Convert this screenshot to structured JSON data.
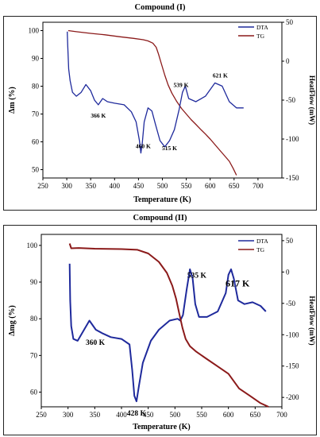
{
  "chart_data": [
    {
      "type": "line",
      "title": "Compound (I)",
      "xlabel": "Temperature (K)",
      "ylabel": "Δm (%)",
      "y2label": "HeatFlow (mW)",
      "xlim": [
        250,
        750
      ],
      "ylim": [
        47,
        103
      ],
      "y2lim": [
        -150,
        50
      ],
      "xticks": [
        250,
        300,
        350,
        400,
        450,
        500,
        550,
        600,
        650,
        700
      ],
      "yticks": [
        50,
        60,
        70,
        80,
        90,
        100
      ],
      "y2ticks": [
        -150,
        -100,
        -50,
        0,
        50
      ],
      "legend": [
        "DTA",
        "TG"
      ],
      "legend_position": "top-right",
      "series": [
        {
          "name": "TG",
          "axis": "left",
          "color": "#8b1a1a",
          "x": [
            303,
            320,
            350,
            380,
            410,
            440,
            460,
            470,
            480,
            487,
            492,
            498,
            505,
            512,
            520,
            530,
            540,
            550,
            560,
            570,
            580,
            590,
            600,
            610,
            620,
            630,
            640,
            648,
            655
          ],
          "y": [
            100,
            99.6,
            99,
            98.5,
            97.8,
            97.2,
            96.7,
            96.3,
            95.5,
            94,
            91.5,
            88,
            84,
            80.5,
            77.5,
            74.5,
            72,
            70,
            68,
            66.3,
            64.5,
            62.8,
            61,
            59,
            57,
            55,
            53,
            50.5,
            48
          ]
        },
        {
          "name": "DTA",
          "axis": "right",
          "color": "#1f2a9c",
          "x": [
            301,
            302,
            304,
            307,
            312,
            320,
            330,
            340,
            350,
            358,
            366,
            375,
            385,
            400,
            420,
            435,
            445,
            452,
            455,
            458,
            462,
            470,
            478,
            485,
            495,
            505,
            515,
            525,
            535,
            542,
            548,
            555,
            570,
            590,
            610,
            625,
            640,
            655,
            670
          ],
          "y": [
            38,
            20,
            -10,
            -25,
            -40,
            -45,
            -40,
            -30,
            -38,
            -50,
            -56,
            -48,
            -52,
            -54,
            -56,
            -65,
            -78,
            -102,
            -118,
            -105,
            -78,
            -60,
            -64,
            -80,
            -102,
            -110,
            -102,
            -88,
            -62,
            -40,
            -32,
            -48,
            -52,
            -45,
            -28,
            -32,
            -52,
            -60,
            -60
          ]
        }
      ],
      "annotations": [
        "366 K",
        "460 K",
        "515 K",
        "539 K",
        "621 K"
      ]
    },
    {
      "type": "line",
      "title": "Compound (II)",
      "xlabel": "Temperature (K)",
      "ylabel": "Δmg (%)",
      "y2label": "HeatFlow (mW)",
      "xlim": [
        250,
        700
      ],
      "ylim": [
        56,
        103
      ],
      "y2lim": [
        -215,
        60
      ],
      "xticks": [
        250,
        300,
        350,
        400,
        450,
        500,
        550,
        600,
        650,
        700
      ],
      "yticks": [
        60,
        70,
        80,
        90,
        100
      ],
      "y2ticks": [
        -200,
        -150,
        -100,
        -50,
        0,
        50
      ],
      "legend": [
        "DTA",
        "TG"
      ],
      "legend_position": "top-right",
      "series": [
        {
          "name": "DTA",
          "axis": "left",
          "color": "#1f2a9c",
          "x": [
            303,
            304,
            306,
            310,
            318,
            328,
            340,
            352,
            365,
            380,
            400,
            415,
            420,
            424,
            428,
            433,
            440,
            455,
            470,
            490,
            505,
            510,
            515,
            522,
            528,
            533,
            538,
            545,
            560,
            580,
            595,
            600,
            605,
            610,
            618,
            630,
            645,
            660,
            670
          ],
          "y": [
            95,
            85,
            78,
            74.5,
            74,
            76.5,
            79.5,
            77,
            76,
            75,
            74.5,
            73,
            66,
            59,
            57.5,
            62,
            68,
            74,
            77,
            79.5,
            80,
            79.5,
            81,
            88,
            93.5,
            91,
            84,
            80.5,
            80.5,
            82,
            87,
            92,
            93.5,
            91,
            85,
            84,
            84.5,
            83.5,
            82
          ]
        },
        {
          "name": "TG",
          "axis": "left",
          "color": "#8b1a1a",
          "x": [
            303,
            306,
            320,
            350,
            400,
            430,
            450,
            470,
            485,
            495,
            502,
            508,
            514,
            520,
            528,
            540,
            560,
            580,
            600,
            620,
            640,
            660,
            675
          ],
          "y": [
            100.5,
            99.2,
            99.3,
            99.1,
            99,
            98.8,
            97.8,
            95.5,
            92.5,
            89,
            85.5,
            81.5,
            77.5,
            74.5,
            72.5,
            71,
            69,
            67,
            65,
            61,
            59,
            57,
            56
          ]
        }
      ],
      "annotations": [
        "360 K",
        "428 K",
        "535 K",
        "617 K"
      ]
    }
  ]
}
